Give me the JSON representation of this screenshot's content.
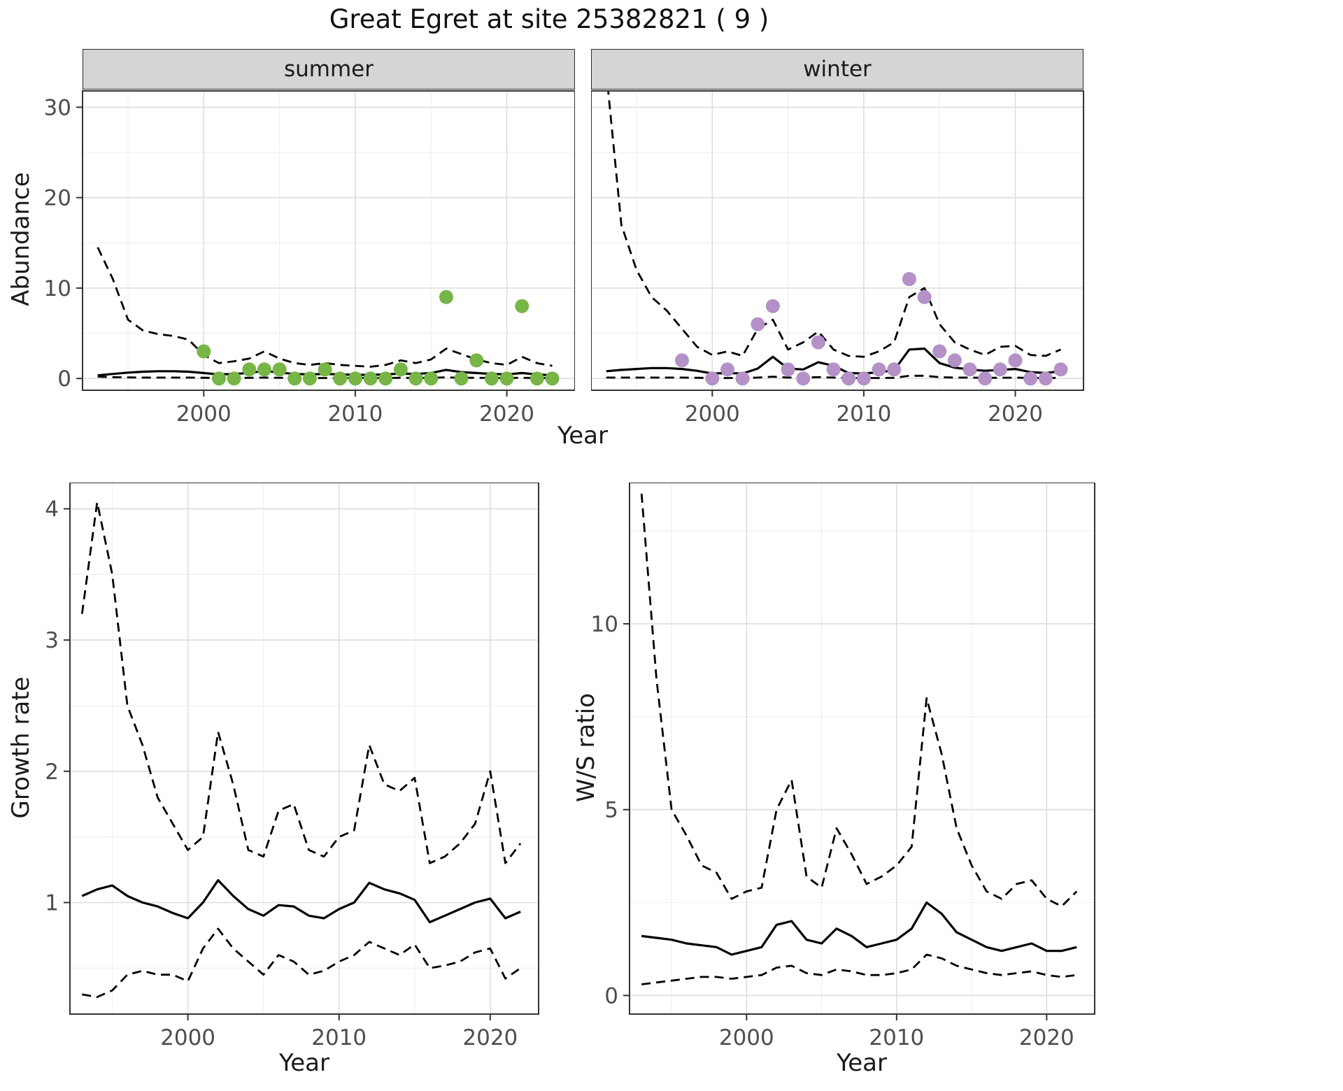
{
  "title": "Great Egret at site 25382821 ( 9 )",
  "facets": [
    {
      "label": "summer"
    },
    {
      "label": "winter"
    }
  ],
  "axes": {
    "x_top": "Year",
    "x_growth": "Year",
    "x_ratio": "Year",
    "y_abundance": "Abundance",
    "y_growth": "Growth rate",
    "y_ratio": "W/S ratio"
  },
  "style": {
    "summer_point_color": "#76b546",
    "winter_point_color": "#b491c7",
    "line_color": "#000000",
    "grid_major": "#dedede",
    "grid_minor": "#efefef",
    "panel_border": "#333333",
    "tick_color": "#333333",
    "tick_label_color": "#4d4d4d",
    "strip_bg": "#d5d5d5"
  },
  "chart_data": [
    {
      "id": "abundance-summer",
      "type": "line",
      "facet": "summer",
      "title": "",
      "xlabel": "Year",
      "ylabel": "Abundance",
      "grid": true,
      "legend": "none",
      "xlim": [
        1992,
        2024.5
      ],
      "ylim": [
        -1.3,
        31.8
      ],
      "xticks": [
        2000,
        2010,
        2020
      ],
      "yticks": [
        0,
        10,
        20,
        30
      ],
      "xticks_minor": [
        1995,
        2005,
        2015
      ],
      "yticks_minor": [
        5,
        15,
        25
      ],
      "x": [
        1993,
        1994,
        1995,
        1996,
        1997,
        1998,
        1999,
        2000,
        2001,
        2002,
        2003,
        2004,
        2005,
        2006,
        2007,
        2008,
        2009,
        2010,
        2011,
        2012,
        2013,
        2014,
        2015,
        2016,
        2017,
        2018,
        2019,
        2020,
        2021,
        2022,
        2023
      ],
      "series": [
        {
          "name": "fitted-median",
          "style": "solid",
          "values": [
            0.35,
            0.5,
            0.65,
            0.75,
            0.8,
            0.8,
            0.75,
            0.6,
            0.45,
            0.5,
            0.6,
            0.85,
            0.65,
            0.5,
            0.45,
            0.5,
            0.45,
            0.4,
            0.4,
            0.45,
            0.55,
            0.5,
            0.6,
            0.95,
            0.7,
            0.6,
            0.5,
            0.45,
            0.6,
            0.45,
            0.35
          ]
        },
        {
          "name": "upper-ci",
          "style": "dashed",
          "values": [
            14.5,
            11,
            6.5,
            5.3,
            4.9,
            4.7,
            4.3,
            2.6,
            1.7,
            1.9,
            2.2,
            3,
            2.2,
            1.7,
            1.5,
            1.7,
            1.5,
            1.4,
            1.3,
            1.5,
            2,
            1.7,
            2.1,
            3.3,
            2.7,
            2.1,
            1.7,
            1.5,
            2.4,
            1.7,
            1.4
          ]
        },
        {
          "name": "lower-ci",
          "style": "dashed",
          "values": [
            0.2,
            0.15,
            0.12,
            0.1,
            0.1,
            0.1,
            0.1,
            0.08,
            0.05,
            0.05,
            0.08,
            0.1,
            0.08,
            0.05,
            0.05,
            0.05,
            0.05,
            0.05,
            0.05,
            0.05,
            0.08,
            0.05,
            0.08,
            0.12,
            0.08,
            0.08,
            0.05,
            0.05,
            0.08,
            0.05,
            0.05
          ]
        }
      ],
      "points": {
        "name": "observed-counts",
        "color": "#76b546",
        "xy": [
          [
            2000,
            3
          ],
          [
            2001,
            0
          ],
          [
            2002,
            0
          ],
          [
            2003,
            1
          ],
          [
            2004,
            1
          ],
          [
            2005,
            1
          ],
          [
            2006,
            0
          ],
          [
            2007,
            0
          ],
          [
            2008,
            1
          ],
          [
            2009,
            0
          ],
          [
            2010,
            0
          ],
          [
            2011,
            0
          ],
          [
            2012,
            0
          ],
          [
            2013,
            1
          ],
          [
            2014,
            0
          ],
          [
            2015,
            0
          ],
          [
            2016,
            9
          ],
          [
            2017,
            0
          ],
          [
            2018,
            2
          ],
          [
            2019,
            0
          ],
          [
            2020,
            0
          ],
          [
            2021,
            8
          ],
          [
            2022,
            0
          ],
          [
            2023,
            0
          ]
        ]
      }
    },
    {
      "id": "abundance-winter",
      "type": "line",
      "facet": "winter",
      "title": "",
      "xlabel": "Year",
      "ylabel": "Abundance",
      "grid": true,
      "legend": "none",
      "xlim": [
        1992,
        2024.5
      ],
      "ylim": [
        -1.3,
        31.8
      ],
      "xticks": [
        2000,
        2010,
        2020
      ],
      "yticks": [
        0,
        10,
        20,
        30
      ],
      "xticks_minor": [
        1995,
        2005,
        2015
      ],
      "yticks_minor": [
        5,
        15,
        25
      ],
      "x": [
        1993,
        1994,
        1995,
        1996,
        1997,
        1998,
        1999,
        2000,
        2001,
        2002,
        2003,
        2004,
        2005,
        2006,
        2007,
        2008,
        2009,
        2010,
        2011,
        2012,
        2013,
        2014,
        2015,
        2016,
        2017,
        2018,
        2019,
        2020,
        2021,
        2022,
        2023
      ],
      "series": [
        {
          "name": "fitted-median",
          "style": "solid",
          "values": [
            0.8,
            0.95,
            1.05,
            1.15,
            1.15,
            1.05,
            0.85,
            0.55,
            0.6,
            0.55,
            1.1,
            2.4,
            1.1,
            1,
            1.8,
            1.4,
            0.6,
            0.55,
            0.7,
            0.9,
            3.2,
            3.3,
            1.7,
            1.2,
            1,
            0.85,
            0.95,
            1.05,
            0.7,
            0.6,
            0.8
          ]
        },
        {
          "name": "upper-ci",
          "style": "dashed",
          "values": [
            34,
            17,
            12,
            9,
            7.5,
            5.5,
            3.5,
            2.6,
            3,
            2.5,
            5.5,
            6.5,
            3.2,
            4,
            5.2,
            3.2,
            2.5,
            2.4,
            3,
            4,
            9,
            10,
            6,
            4,
            3.2,
            2.6,
            3.5,
            3.6,
            2.6,
            2.5,
            3.2
          ]
        },
        {
          "name": "lower-ci",
          "style": "dashed",
          "values": [
            0.1,
            0.1,
            0.1,
            0.1,
            0.1,
            0.1,
            0.08,
            0.05,
            0.05,
            0.05,
            0.1,
            0.2,
            0.1,
            0.1,
            0.15,
            0.1,
            0.05,
            0.05,
            0.05,
            0.08,
            0.3,
            0.3,
            0.15,
            0.1,
            0.1,
            0.08,
            0.08,
            0.1,
            0.05,
            0.05,
            0.08
          ]
        }
      ],
      "points": {
        "name": "observed-counts",
        "color": "#b491c7",
        "xy": [
          [
            1998,
            2
          ],
          [
            2000,
            0
          ],
          [
            2001,
            1
          ],
          [
            2002,
            0
          ],
          [
            2003,
            6
          ],
          [
            2004,
            8
          ],
          [
            2005,
            1
          ],
          [
            2006,
            0
          ],
          [
            2007,
            4
          ],
          [
            2008,
            1
          ],
          [
            2009,
            0
          ],
          [
            2010,
            0
          ],
          [
            2011,
            1
          ],
          [
            2012,
            1
          ],
          [
            2013,
            11
          ],
          [
            2014,
            9
          ],
          [
            2015,
            3
          ],
          [
            2016,
            2
          ],
          [
            2017,
            1
          ],
          [
            2018,
            0
          ],
          [
            2019,
            1
          ],
          [
            2020,
            2
          ],
          [
            2021,
            0
          ],
          [
            2022,
            0
          ],
          [
            2023,
            1
          ]
        ]
      }
    },
    {
      "id": "growth-rate",
      "type": "line",
      "facet": "",
      "title": "",
      "xlabel": "Year",
      "ylabel": "Growth rate",
      "grid": true,
      "legend": "none",
      "xlim": [
        1992.2,
        2023.2
      ],
      "ylim": [
        0.15,
        4.2
      ],
      "xticks": [
        2000,
        2010,
        2020
      ],
      "yticks": [
        1,
        2,
        3,
        4
      ],
      "xticks_minor": [
        1995,
        2005,
        2015
      ],
      "yticks_minor": [
        0.5,
        1.5,
        2.5,
        3.5
      ],
      "x": [
        1993,
        1994,
        1995,
        1996,
        1997,
        1998,
        1999,
        2000,
        2001,
        2002,
        2003,
        2004,
        2005,
        2006,
        2007,
        2008,
        2009,
        2010,
        2011,
        2012,
        2013,
        2014,
        2015,
        2016,
        2017,
        2018,
        2019,
        2020,
        2021,
        2022
      ],
      "series": [
        {
          "name": "fitted-median",
          "style": "solid",
          "values": [
            1.05,
            1.1,
            1.13,
            1.05,
            1,
            0.97,
            0.92,
            0.88,
            1,
            1.17,
            1.05,
            0.95,
            0.9,
            0.98,
            0.97,
            0.9,
            0.88,
            0.95,
            1,
            1.15,
            1.1,
            1.07,
            1.02,
            0.85,
            0.9,
            0.95,
            1,
            1.03,
            0.88,
            0.93
          ]
        },
        {
          "name": "upper-ci",
          "style": "dashed",
          "values": [
            3.2,
            4.05,
            3.5,
            2.5,
            2.2,
            1.8,
            1.6,
            1.4,
            1.5,
            2.3,
            1.9,
            1.4,
            1.35,
            1.7,
            1.75,
            1.4,
            1.35,
            1.5,
            1.55,
            2.2,
            1.9,
            1.85,
            1.95,
            1.3,
            1.35,
            1.45,
            1.6,
            2,
            1.3,
            1.45
          ]
        },
        {
          "name": "lower-ci",
          "style": "dashed",
          "values": [
            0.3,
            0.28,
            0.33,
            0.45,
            0.48,
            0.45,
            0.45,
            0.4,
            0.65,
            0.8,
            0.65,
            0.55,
            0.45,
            0.6,
            0.55,
            0.45,
            0.48,
            0.55,
            0.6,
            0.7,
            0.65,
            0.6,
            0.68,
            0.5,
            0.52,
            0.55,
            0.62,
            0.65,
            0.42,
            0.5
          ]
        }
      ]
    },
    {
      "id": "ws-ratio",
      "type": "line",
      "facet": "",
      "title": "",
      "xlabel": "Year",
      "ylabel": "W/S ratio",
      "grid": true,
      "legend": "none",
      "xlim": [
        1992.2,
        2023.2
      ],
      "ylim": [
        -0.5,
        13.8
      ],
      "xticks": [
        2000,
        2010,
        2020
      ],
      "yticks": [
        0,
        5,
        10
      ],
      "xticks_minor": [
        1995,
        2005,
        2015
      ],
      "yticks_minor": [
        2.5,
        7.5,
        12.5
      ],
      "x": [
        1993,
        1994,
        1995,
        1996,
        1997,
        1998,
        1999,
        2000,
        2001,
        2002,
        2003,
        2004,
        2005,
        2006,
        2007,
        2008,
        2009,
        2010,
        2011,
        2012,
        2013,
        2014,
        2015,
        2016,
        2017,
        2018,
        2019,
        2020,
        2021,
        2022
      ],
      "series": [
        {
          "name": "fitted-median",
          "style": "solid",
          "values": [
            1.6,
            1.55,
            1.5,
            1.4,
            1.35,
            1.3,
            1.1,
            1.2,
            1.3,
            1.9,
            2,
            1.5,
            1.4,
            1.8,
            1.6,
            1.3,
            1.4,
            1.5,
            1.8,
            2.5,
            2.2,
            1.7,
            1.5,
            1.3,
            1.2,
            1.3,
            1.4,
            1.2,
            1.2,
            1.3
          ]
        },
        {
          "name": "upper-ci",
          "style": "dashed",
          "values": [
            13.5,
            8.5,
            5,
            4.3,
            3.5,
            3.3,
            2.6,
            2.8,
            2.9,
            5,
            5.8,
            3.2,
            2.9,
            4.5,
            3.8,
            3,
            3.2,
            3.5,
            4,
            8,
            6.5,
            4.5,
            3.5,
            2.8,
            2.6,
            3,
            3.1,
            2.6,
            2.4,
            2.8
          ]
        },
        {
          "name": "lower-ci",
          "style": "dashed",
          "values": [
            0.3,
            0.35,
            0.4,
            0.45,
            0.5,
            0.5,
            0.45,
            0.5,
            0.55,
            0.75,
            0.8,
            0.6,
            0.55,
            0.7,
            0.65,
            0.55,
            0.55,
            0.6,
            0.7,
            1.1,
            1,
            0.8,
            0.7,
            0.6,
            0.55,
            0.6,
            0.65,
            0.55,
            0.5,
            0.55
          ]
        }
      ]
    }
  ]
}
